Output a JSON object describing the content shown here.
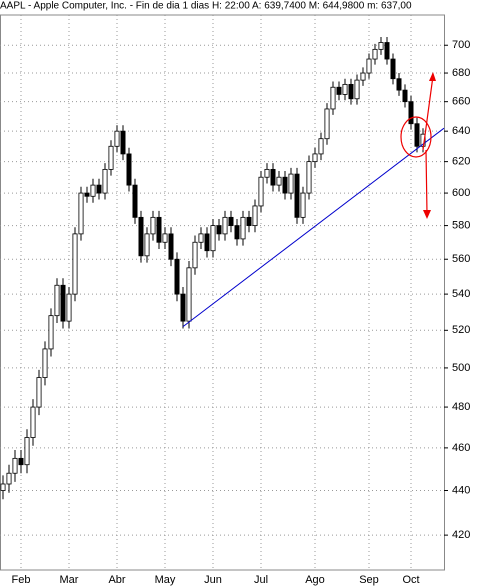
{
  "chart_data": {
    "type": "candlestick",
    "title": "AAPL - Apple Computer, Inc. - Fin de dia 1 dias  H: 22:00  A: 639,7400  M: 644,9800  m: 637,00",
    "x": [
      0,
      1,
      2,
      3,
      4,
      5,
      6,
      7,
      8,
      9,
      10,
      11,
      12,
      13,
      14,
      15,
      16,
      17,
      18,
      19,
      20,
      21,
      22,
      23,
      24,
      25,
      26,
      27,
      28,
      29,
      30,
      31,
      32,
      33,
      34,
      35,
      36,
      37,
      38,
      39,
      40,
      41,
      42,
      43,
      44,
      45,
      46,
      47,
      48,
      49,
      50,
      51,
      52,
      53,
      54,
      55,
      56,
      57,
      58,
      59,
      60,
      61,
      62,
      63,
      64,
      65,
      66,
      67,
      68,
      69,
      70
    ],
    "open": [
      440,
      443,
      448,
      455,
      452,
      465,
      480,
      495,
      510,
      528,
      545,
      525,
      540,
      575,
      600,
      598,
      605,
      600,
      615,
      630,
      640,
      625,
      605,
      585,
      562,
      575,
      585,
      570,
      575,
      560,
      540,
      525,
      555,
      570,
      575,
      565,
      580,
      575,
      585,
      580,
      572,
      585,
      580,
      592,
      610,
      615,
      605,
      610,
      600,
      612,
      585,
      600,
      620,
      625,
      635,
      655,
      670,
      665,
      672,
      662,
      675,
      680,
      690,
      697,
      702,
      690,
      676,
      668,
      660,
      645,
      630
    ],
    "high": [
      447,
      452,
      459,
      459,
      469,
      484,
      499,
      514,
      532,
      549,
      549,
      544,
      579,
      604,
      604,
      609,
      609,
      619,
      634,
      644,
      644,
      629,
      609,
      589,
      579,
      589,
      589,
      579,
      579,
      564,
      544,
      559,
      574,
      579,
      579,
      584,
      584,
      589,
      589,
      584,
      589,
      589,
      596,
      614,
      619,
      619,
      614,
      614,
      616,
      616,
      604,
      624,
      629,
      639,
      659,
      674,
      674,
      676,
      676,
      679,
      684,
      694,
      701,
      706,
      706,
      694,
      680,
      672,
      664,
      649,
      642
    ],
    "low": [
      436,
      439,
      444,
      448,
      448,
      461,
      476,
      491,
      506,
      524,
      521,
      521,
      536,
      571,
      594,
      594,
      596,
      596,
      611,
      626,
      621,
      601,
      581,
      558,
      558,
      571,
      566,
      566,
      556,
      536,
      521,
      521,
      551,
      566,
      561,
      561,
      571,
      571,
      576,
      568,
      568,
      576,
      576,
      588,
      606,
      601,
      601,
      596,
      596,
      581,
      581,
      596,
      616,
      621,
      631,
      651,
      661,
      661,
      658,
      658,
      671,
      676,
      686,
      693,
      686,
      672,
      664,
      656,
      641,
      626,
      626
    ],
    "close": [
      443,
      448,
      455,
      452,
      465,
      480,
      495,
      510,
      528,
      545,
      525,
      540,
      575,
      600,
      598,
      605,
      600,
      615,
      630,
      640,
      625,
      605,
      585,
      562,
      575,
      585,
      570,
      575,
      560,
      540,
      525,
      555,
      570,
      575,
      565,
      580,
      575,
      585,
      580,
      572,
      585,
      580,
      592,
      610,
      615,
      605,
      610,
      600,
      612,
      585,
      600,
      620,
      625,
      635,
      655,
      670,
      665,
      672,
      662,
      675,
      680,
      690,
      697,
      702,
      690,
      676,
      668,
      660,
      645,
      630,
      638
    ],
    "up_color": "#ffffff",
    "down_color": "#000000",
    "xlim": [
      -0.5,
      73.5
    ],
    "xticks": [
      {
        "value": 3,
        "label": "Feb"
      },
      {
        "value": 11,
        "label": "Mar"
      },
      {
        "value": 19,
        "label": "Abr"
      },
      {
        "value": 27,
        "label": "May"
      },
      {
        "value": 35,
        "label": "Jun"
      },
      {
        "value": 43,
        "label": "Jul"
      },
      {
        "value": 52,
        "label": "Ago"
      },
      {
        "value": 61,
        "label": "Sep"
      },
      {
        "value": 68,
        "label": "Oct"
      }
    ],
    "ylim": [
      405,
      730
    ],
    "log_y": true,
    "yticks": [
      420,
      440,
      460,
      480,
      500,
      520,
      540,
      560,
      580,
      600,
      620,
      640,
      660,
      680,
      700
    ],
    "grid": true,
    "trendline": {
      "color": "#0000cc",
      "x": [
        30,
        73.5
      ],
      "y": [
        522,
        642
      ]
    }
  }
}
